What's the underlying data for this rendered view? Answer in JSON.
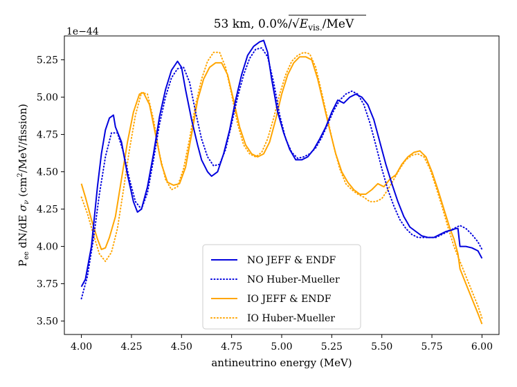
{
  "chart_data": {
    "type": "line",
    "title": "53 km, 0.0%/√E_vis./MeV",
    "title_parts": {
      "prefix": "53 km, 0.0%/",
      "sqrt": "√",
      "e": "E",
      "sub": "vis.",
      "suffix": "/MeV"
    },
    "offset_label": "1e−44",
    "xlabel": "antineutrino energy (MeV)",
    "ylabel_parts": {
      "p": "P",
      "p_sub": "ee",
      "mid": " dN/dE ",
      "sigma": "σ",
      "sigma_sub": "ν",
      "unit_open": " (cm",
      "unit_sup": "2",
      "unit_close": "/MeV/fission)"
    },
    "xlim": [
      3.915,
      6.085
    ],
    "ylim": [
      3.41,
      5.41
    ],
    "xticks": [
      "4.00",
      "4.25",
      "4.50",
      "4.75",
      "5.00",
      "5.25",
      "5.50",
      "5.75",
      "6.00"
    ],
    "yticks": [
      "3.50",
      "3.75",
      "4.00",
      "4.25",
      "4.50",
      "4.75",
      "5.00",
      "5.25"
    ],
    "legend_position": "lower center",
    "series": [
      {
        "name": "NO JEFF & ENDF",
        "color": "#0000dd",
        "style": "solid",
        "points": [
          [
            4.0,
            3.73
          ],
          [
            4.02,
            3.78
          ],
          [
            4.05,
            4.0
          ],
          [
            4.08,
            4.4
          ],
          [
            4.1,
            4.62
          ],
          [
            4.12,
            4.78
          ],
          [
            4.14,
            4.86
          ],
          [
            4.16,
            4.88
          ],
          [
            4.17,
            4.8
          ],
          [
            4.2,
            4.7
          ],
          [
            4.23,
            4.48
          ],
          [
            4.26,
            4.3
          ],
          [
            4.28,
            4.23
          ],
          [
            4.3,
            4.25
          ],
          [
            4.33,
            4.4
          ],
          [
            4.36,
            4.62
          ],
          [
            4.39,
            4.87
          ],
          [
            4.42,
            5.05
          ],
          [
            4.45,
            5.18
          ],
          [
            4.47,
            5.22
          ],
          [
            4.48,
            5.24
          ],
          [
            4.5,
            5.2
          ],
          [
            4.52,
            5.05
          ],
          [
            4.55,
            4.85
          ],
          [
            4.58,
            4.68
          ],
          [
            4.6,
            4.58
          ],
          [
            4.63,
            4.5
          ],
          [
            4.65,
            4.47
          ],
          [
            4.68,
            4.5
          ],
          [
            4.71,
            4.62
          ],
          [
            4.74,
            4.78
          ],
          [
            4.77,
            4.98
          ],
          [
            4.8,
            5.15
          ],
          [
            4.83,
            5.28
          ],
          [
            4.86,
            5.34
          ],
          [
            4.89,
            5.37
          ],
          [
            4.91,
            5.38
          ],
          [
            4.93,
            5.3
          ],
          [
            4.95,
            5.12
          ],
          [
            4.98,
            4.9
          ],
          [
            5.01,
            4.76
          ],
          [
            5.04,
            4.65
          ],
          [
            5.07,
            4.58
          ],
          [
            5.1,
            4.58
          ],
          [
            5.13,
            4.6
          ],
          [
            5.16,
            4.65
          ],
          [
            5.19,
            4.72
          ],
          [
            5.22,
            4.8
          ],
          [
            5.25,
            4.9
          ],
          [
            5.28,
            4.98
          ],
          [
            5.31,
            4.96
          ],
          [
            5.34,
            5.0
          ],
          [
            5.37,
            5.02
          ],
          [
            5.4,
            5.0
          ],
          [
            5.43,
            4.95
          ],
          [
            5.46,
            4.85
          ],
          [
            5.49,
            4.7
          ],
          [
            5.52,
            4.55
          ],
          [
            5.55,
            4.42
          ],
          [
            5.58,
            4.3
          ],
          [
            5.61,
            4.2
          ],
          [
            5.64,
            4.13
          ],
          [
            5.67,
            4.1
          ],
          [
            5.7,
            4.07
          ],
          [
            5.73,
            4.06
          ],
          [
            5.76,
            4.06
          ],
          [
            5.79,
            4.08
          ],
          [
            5.82,
            4.1
          ],
          [
            5.85,
            4.11
          ],
          [
            5.87,
            4.12
          ],
          [
            5.88,
            4.12
          ],
          [
            5.89,
            4.0
          ],
          [
            5.92,
            4.0
          ],
          [
            5.95,
            3.99
          ],
          [
            5.98,
            3.97
          ],
          [
            6.0,
            3.92
          ]
        ]
      },
      {
        "name": "NO Huber-Mueller",
        "color": "#0000dd",
        "style": "dotted",
        "points": [
          [
            4.0,
            3.65
          ],
          [
            4.03,
            3.8
          ],
          [
            4.06,
            4.05
          ],
          [
            4.09,
            4.35
          ],
          [
            4.12,
            4.6
          ],
          [
            4.15,
            4.76
          ],
          [
            4.18,
            4.76
          ],
          [
            4.21,
            4.63
          ],
          [
            4.24,
            4.45
          ],
          [
            4.27,
            4.3
          ],
          [
            4.3,
            4.25
          ],
          [
            4.33,
            4.36
          ],
          [
            4.36,
            4.58
          ],
          [
            4.39,
            4.82
          ],
          [
            4.42,
            5.0
          ],
          [
            4.45,
            5.13
          ],
          [
            4.48,
            5.19
          ],
          [
            4.51,
            5.2
          ],
          [
            4.54,
            5.1
          ],
          [
            4.57,
            4.9
          ],
          [
            4.6,
            4.72
          ],
          [
            4.63,
            4.6
          ],
          [
            4.66,
            4.54
          ],
          [
            4.69,
            4.55
          ],
          [
            4.72,
            4.65
          ],
          [
            4.75,
            4.82
          ],
          [
            4.78,
            5.0
          ],
          [
            4.81,
            5.15
          ],
          [
            4.84,
            5.26
          ],
          [
            4.87,
            5.32
          ],
          [
            4.9,
            5.33
          ],
          [
            4.93,
            5.27
          ],
          [
            4.96,
            5.1
          ],
          [
            4.99,
            4.88
          ],
          [
            5.02,
            4.72
          ],
          [
            5.05,
            4.63
          ],
          [
            5.08,
            4.59
          ],
          [
            5.11,
            4.6
          ],
          [
            5.14,
            4.62
          ],
          [
            5.17,
            4.66
          ],
          [
            5.2,
            4.73
          ],
          [
            5.23,
            4.82
          ],
          [
            5.26,
            4.91
          ],
          [
            5.29,
            4.98
          ],
          [
            5.32,
            5.02
          ],
          [
            5.35,
            5.04
          ],
          [
            5.38,
            5.02
          ],
          [
            5.41,
            4.95
          ],
          [
            5.44,
            4.83
          ],
          [
            5.47,
            4.68
          ],
          [
            5.5,
            4.52
          ],
          [
            5.53,
            4.38
          ],
          [
            5.56,
            4.27
          ],
          [
            5.59,
            4.18
          ],
          [
            5.62,
            4.12
          ],
          [
            5.65,
            4.08
          ],
          [
            5.68,
            4.06
          ],
          [
            5.71,
            4.06
          ],
          [
            5.74,
            4.06
          ],
          [
            5.77,
            4.06
          ],
          [
            5.8,
            4.08
          ],
          [
            5.83,
            4.1
          ],
          [
            5.86,
            4.12
          ],
          [
            5.89,
            4.14
          ],
          [
            5.92,
            4.12
          ],
          [
            5.95,
            4.08
          ],
          [
            5.98,
            4.03
          ],
          [
            6.0,
            3.98
          ]
        ]
      },
      {
        "name": "IO JEFF & ENDF",
        "color": "#ffa500",
        "style": "solid",
        "points": [
          [
            4.0,
            4.42
          ],
          [
            4.02,
            4.33
          ],
          [
            4.05,
            4.18
          ],
          [
            4.08,
            4.05
          ],
          [
            4.1,
            3.98
          ],
          [
            4.12,
            3.99
          ],
          [
            4.14,
            4.06
          ],
          [
            4.17,
            4.2
          ],
          [
            4.2,
            4.45
          ],
          [
            4.23,
            4.7
          ],
          [
            4.26,
            4.9
          ],
          [
            4.29,
            5.02
          ],
          [
            4.31,
            5.03
          ],
          [
            4.34,
            4.95
          ],
          [
            4.37,
            4.75
          ],
          [
            4.4,
            4.55
          ],
          [
            4.43,
            4.43
          ],
          [
            4.46,
            4.41
          ],
          [
            4.49,
            4.42
          ],
          [
            4.52,
            4.53
          ],
          [
            4.55,
            4.75
          ],
          [
            4.58,
            4.98
          ],
          [
            4.61,
            5.12
          ],
          [
            4.64,
            5.2
          ],
          [
            4.67,
            5.23
          ],
          [
            4.7,
            5.23
          ],
          [
            4.73,
            5.15
          ],
          [
            4.76,
            4.98
          ],
          [
            4.79,
            4.8
          ],
          [
            4.82,
            4.68
          ],
          [
            4.85,
            4.62
          ],
          [
            4.88,
            4.6
          ],
          [
            4.91,
            4.62
          ],
          [
            4.94,
            4.7
          ],
          [
            4.97,
            4.85
          ],
          [
            5.0,
            5.02
          ],
          [
            5.03,
            5.15
          ],
          [
            5.06,
            5.23
          ],
          [
            5.09,
            5.27
          ],
          [
            5.12,
            5.27
          ],
          [
            5.15,
            5.25
          ],
          [
            5.18,
            5.12
          ],
          [
            5.21,
            4.95
          ],
          [
            5.24,
            4.78
          ],
          [
            5.27,
            4.62
          ],
          [
            5.3,
            4.5
          ],
          [
            5.33,
            4.43
          ],
          [
            5.36,
            4.38
          ],
          [
            5.39,
            4.35
          ],
          [
            5.42,
            4.35
          ],
          [
            5.45,
            4.38
          ],
          [
            5.48,
            4.42
          ],
          [
            5.51,
            4.4
          ],
          [
            5.54,
            4.45
          ],
          [
            5.57,
            4.48
          ],
          [
            5.6,
            4.55
          ],
          [
            5.63,
            4.6
          ],
          [
            5.66,
            4.63
          ],
          [
            5.69,
            4.64
          ],
          [
            5.72,
            4.6
          ],
          [
            5.75,
            4.5
          ],
          [
            5.78,
            4.38
          ],
          [
            5.81,
            4.25
          ],
          [
            5.84,
            4.12
          ],
          [
            5.86,
            4.05
          ],
          [
            5.88,
            3.95
          ],
          [
            5.89,
            3.85
          ],
          [
            5.92,
            3.75
          ],
          [
            5.95,
            3.65
          ],
          [
            5.98,
            3.55
          ],
          [
            6.0,
            3.48
          ]
        ]
      },
      {
        "name": "IO Huber-Mueller",
        "color": "#ffa500",
        "style": "dotted",
        "points": [
          [
            4.0,
            4.33
          ],
          [
            4.03,
            4.22
          ],
          [
            4.06,
            4.08
          ],
          [
            4.09,
            3.95
          ],
          [
            4.12,
            3.9
          ],
          [
            4.15,
            3.96
          ],
          [
            4.18,
            4.12
          ],
          [
            4.21,
            4.38
          ],
          [
            4.24,
            4.65
          ],
          [
            4.27,
            4.88
          ],
          [
            4.3,
            5.03
          ],
          [
            4.33,
            5.02
          ],
          [
            4.36,
            4.85
          ],
          [
            4.39,
            4.62
          ],
          [
            4.42,
            4.45
          ],
          [
            4.45,
            4.38
          ],
          [
            4.48,
            4.4
          ],
          [
            4.51,
            4.52
          ],
          [
            4.54,
            4.72
          ],
          [
            4.57,
            4.95
          ],
          [
            4.6,
            5.12
          ],
          [
            4.63,
            5.24
          ],
          [
            4.66,
            5.3
          ],
          [
            4.69,
            5.3
          ],
          [
            4.72,
            5.2
          ],
          [
            4.75,
            5.02
          ],
          [
            4.78,
            4.82
          ],
          [
            4.81,
            4.68
          ],
          [
            4.84,
            4.62
          ],
          [
            4.87,
            4.6
          ],
          [
            4.9,
            4.63
          ],
          [
            4.93,
            4.72
          ],
          [
            4.96,
            4.86
          ],
          [
            4.99,
            5.02
          ],
          [
            5.02,
            5.15
          ],
          [
            5.05,
            5.24
          ],
          [
            5.08,
            5.28
          ],
          [
            5.11,
            5.3
          ],
          [
            5.14,
            5.29
          ],
          [
            5.17,
            5.2
          ],
          [
            5.2,
            5.03
          ],
          [
            5.23,
            4.85
          ],
          [
            5.26,
            4.67
          ],
          [
            5.29,
            4.52
          ],
          [
            5.32,
            4.42
          ],
          [
            5.35,
            4.38
          ],
          [
            5.38,
            4.35
          ],
          [
            5.41,
            4.33
          ],
          [
            5.44,
            4.3
          ],
          [
            5.47,
            4.3
          ],
          [
            5.5,
            4.32
          ],
          [
            5.53,
            4.38
          ],
          [
            5.56,
            4.45
          ],
          [
            5.59,
            4.52
          ],
          [
            5.62,
            4.58
          ],
          [
            5.65,
            4.61
          ],
          [
            5.68,
            4.62
          ],
          [
            5.71,
            4.6
          ],
          [
            5.74,
            4.52
          ],
          [
            5.77,
            4.4
          ],
          [
            5.8,
            4.27
          ],
          [
            5.83,
            4.13
          ],
          [
            5.86,
            4.0
          ],
          [
            5.89,
            3.9
          ],
          [
            5.92,
            3.8
          ],
          [
            5.95,
            3.7
          ],
          [
            5.98,
            3.6
          ],
          [
            6.0,
            3.52
          ]
        ]
      }
    ]
  }
}
